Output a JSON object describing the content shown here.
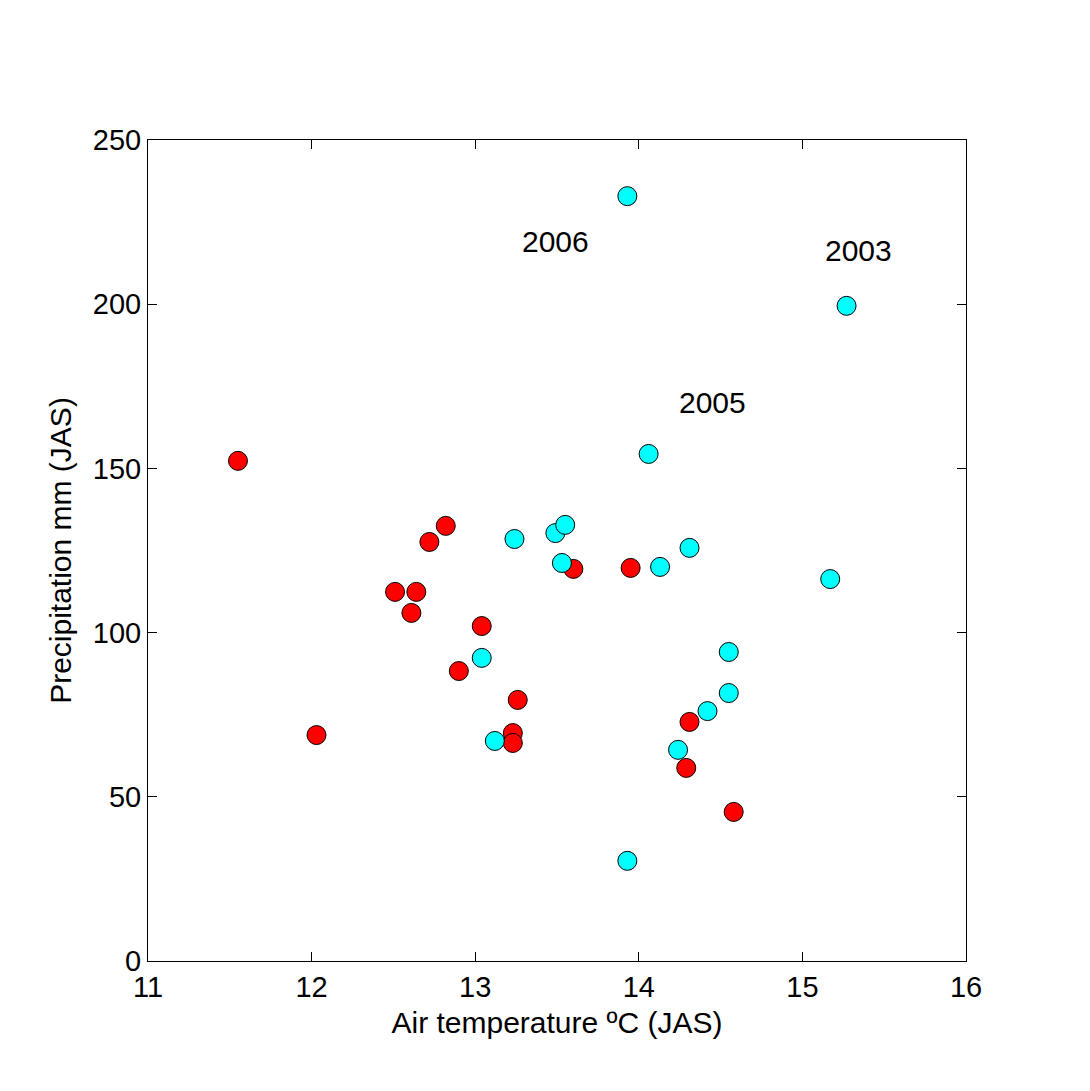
{
  "chart_data": {
    "type": "scatter",
    "x_label": "Air temperature ºC (JAS)",
    "y_label": "Precipitation mm (JAS)",
    "xlim": [
      11,
      16
    ],
    "xticks": [
      11,
      12,
      13,
      14,
      15,
      16
    ],
    "ylim": [
      0,
      250
    ],
    "yticks": [
      0,
      50,
      100,
      150,
      200,
      250
    ],
    "grid": false,
    "marker": "circle",
    "series": [
      {
        "color": "#ff0000",
        "x": [
          11.55,
          12.03,
          12.51,
          12.64,
          12.61,
          12.72,
          12.82,
          12.9,
          13.04,
          13.23,
          13.23,
          13.26,
          13.6,
          13.95,
          14.31,
          14.29,
          14.58
        ],
        "values": [
          152.3,
          68.8,
          112.4,
          112.4,
          106.0,
          127.6,
          132.5,
          88.3,
          102.0,
          69.4,
          66.4,
          79.5,
          119.4,
          119.7,
          72.8,
          58.8,
          45.4
        ]
      },
      {
        "color": "#00ffff",
        "x": [
          13.93,
          15.27,
          14.06,
          13.24,
          13.49,
          13.55,
          13.53,
          14.13,
          14.31,
          15.17,
          13.04,
          13.12,
          14.55,
          14.55,
          14.42,
          14.24,
          13.93
        ],
        "values": [
          232.9,
          199.5,
          154.4,
          128.5,
          130.3,
          132.8,
          121.2,
          120.0,
          125.8,
          116.3,
          92.3,
          67.0,
          94.1,
          81.6,
          76.1,
          64.3,
          30.5
        ]
      }
    ],
    "annotations": [
      {
        "text": "2006",
        "x": 13.49,
        "y": 219
      },
      {
        "text": "2003",
        "x": 15.34,
        "y": 216.5
      },
      {
        "text": "2005",
        "x": 14.45,
        "y": 170
      }
    ]
  }
}
